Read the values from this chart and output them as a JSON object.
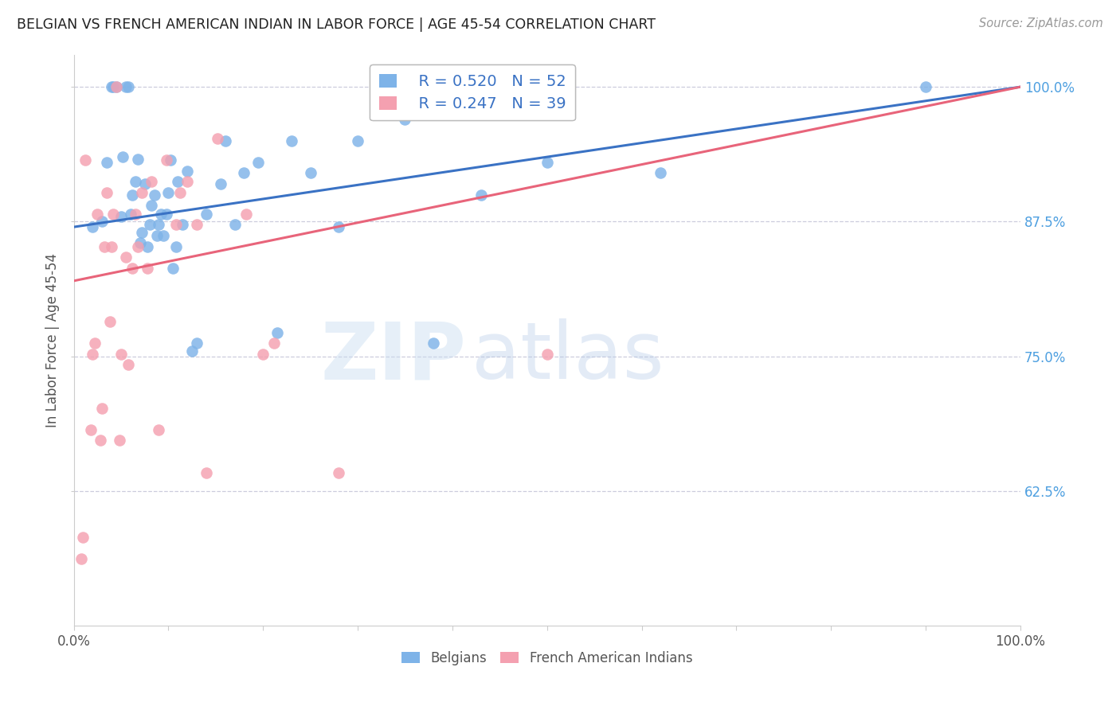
{
  "title": "BELGIAN VS FRENCH AMERICAN INDIAN IN LABOR FORCE | AGE 45-54 CORRELATION CHART",
  "source": "Source: ZipAtlas.com",
  "ylabel": "In Labor Force | Age 45-54",
  "xlim": [
    0.0,
    1.0
  ],
  "ylim": [
    0.5,
    1.03
  ],
  "yticks": [
    0.625,
    0.75,
    0.875,
    1.0
  ],
  "ytick_labels": [
    "62.5%",
    "75.0%",
    "87.5%",
    "100.0%"
  ],
  "xticks": [
    0.0,
    0.1,
    0.2,
    0.3,
    0.4,
    0.5,
    0.6,
    0.7,
    0.8,
    0.9,
    1.0
  ],
  "xtick_labels": [
    "0.0%",
    "",
    "",
    "",
    "",
    "",
    "",
    "",
    "",
    "",
    "100.0%"
  ],
  "belgian_color": "#7EB3E8",
  "french_color": "#F4A0B0",
  "trendline_belgian_color": "#3A72C4",
  "trendline_french_color": "#E8647A",
  "legend_r_belgian": "R = 0.520",
  "legend_n_belgian": "N = 52",
  "legend_r_french": "R = 0.247",
  "legend_n_french": "N = 39",
  "watermark_zip": "ZIP",
  "watermark_atlas": "atlas",
  "background_color": "#ffffff",
  "grid_color": "#CCCCDD",
  "belgian_x": [
    0.02,
    0.03,
    0.035,
    0.04,
    0.042,
    0.045,
    0.05,
    0.052,
    0.055,
    0.058,
    0.06,
    0.062,
    0.065,
    0.068,
    0.07,
    0.072,
    0.075,
    0.078,
    0.08,
    0.082,
    0.085,
    0.088,
    0.09,
    0.092,
    0.095,
    0.098,
    0.1,
    0.102,
    0.105,
    0.108,
    0.11,
    0.115,
    0.12,
    0.125,
    0.13,
    0.14,
    0.155,
    0.16,
    0.17,
    0.18,
    0.195,
    0.215,
    0.23,
    0.25,
    0.28,
    0.3,
    0.35,
    0.38,
    0.43,
    0.5,
    0.62,
    0.9
  ],
  "belgian_y": [
    0.87,
    0.875,
    0.93,
    1.0,
    1.0,
    1.0,
    0.88,
    0.935,
    1.0,
    1.0,
    0.882,
    0.9,
    0.912,
    0.933,
    0.855,
    0.865,
    0.91,
    0.852,
    0.872,
    0.89,
    0.9,
    0.862,
    0.872,
    0.882,
    0.862,
    0.882,
    0.902,
    0.932,
    0.832,
    0.852,
    0.912,
    0.872,
    0.922,
    0.755,
    0.762,
    0.882,
    0.91,
    0.95,
    0.872,
    0.92,
    0.93,
    0.772,
    0.95,
    0.92,
    0.87,
    0.95,
    0.97,
    0.762,
    0.9,
    0.93,
    0.92,
    1.0
  ],
  "french_x": [
    0.008,
    0.01,
    0.012,
    0.018,
    0.02,
    0.022,
    0.025,
    0.028,
    0.03,
    0.032,
    0.035,
    0.038,
    0.04,
    0.042,
    0.045,
    0.048,
    0.05,
    0.055,
    0.058,
    0.062,
    0.065,
    0.068,
    0.072,
    0.078,
    0.082,
    0.09,
    0.098,
    0.108,
    0.112,
    0.12,
    0.13,
    0.14,
    0.152,
    0.182,
    0.2,
    0.212,
    0.28,
    0.5,
    0.51
  ],
  "french_y": [
    0.562,
    0.582,
    0.932,
    0.682,
    0.752,
    0.762,
    0.882,
    0.672,
    0.702,
    0.852,
    0.902,
    0.782,
    0.852,
    0.882,
    1.0,
    0.672,
    0.752,
    0.842,
    0.742,
    0.832,
    0.882,
    0.852,
    0.902,
    0.832,
    0.912,
    0.682,
    0.932,
    0.872,
    0.902,
    0.912,
    0.872,
    0.642,
    0.952,
    0.882,
    0.752,
    0.762,
    0.642,
    0.752,
    1.0
  ],
  "trendline_belgian_x0": 0.0,
  "trendline_belgian_y0": 0.87,
  "trendline_belgian_x1": 1.0,
  "trendline_belgian_y1": 1.0,
  "trendline_french_x0": 0.0,
  "trendline_french_y0": 0.82,
  "trendline_french_x1": 1.0,
  "trendline_french_y1": 1.0
}
